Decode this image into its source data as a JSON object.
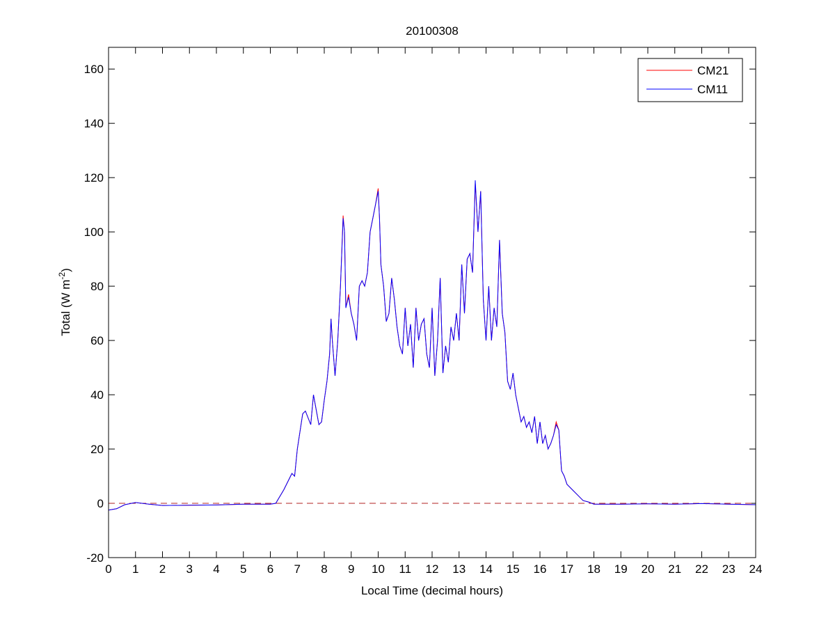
{
  "chart_data": {
    "type": "line",
    "title": "20100308",
    "xlabel": "Local Time (decimal hours)",
    "ylabel_main": "Total (W m",
    "ylabel_sup": "-2",
    "ylabel_end": ")",
    "xlim": [
      0,
      24
    ],
    "ylim": [
      -20,
      168
    ],
    "xticks": [
      0,
      1,
      2,
      3,
      4,
      5,
      6,
      7,
      8,
      9,
      10,
      11,
      12,
      13,
      14,
      15,
      16,
      17,
      18,
      19,
      20,
      21,
      22,
      23,
      24
    ],
    "yticks": [
      -20,
      0,
      20,
      40,
      60,
      80,
      100,
      120,
      140,
      160
    ],
    "grid": false,
    "legend_position": "top-right",
    "reference_line": {
      "y": 0,
      "style": "dashed",
      "color": "#b22222"
    },
    "x": [
      0,
      0.3,
      0.6,
      1,
      1.5,
      2,
      3,
      4,
      5,
      6,
      6.2,
      6.5,
      6.8,
      6.9,
      7,
      7.2,
      7.3,
      7.5,
      7.6,
      7.8,
      7.9,
      8.0,
      8.1,
      8.2,
      8.25,
      8.3,
      8.4,
      8.5,
      8.6,
      8.7,
      8.75,
      8.8,
      8.9,
      9.0,
      9.1,
      9.2,
      9.3,
      9.4,
      9.5,
      9.6,
      9.7,
      9.8,
      9.9,
      10,
      10.05,
      10.1,
      10.2,
      10.3,
      10.4,
      10.5,
      10.6,
      10.7,
      10.8,
      10.9,
      11.0,
      11.1,
      11.2,
      11.3,
      11.4,
      11.5,
      11.6,
      11.7,
      11.8,
      11.9,
      12.0,
      12.1,
      12.2,
      12.3,
      12.4,
      12.5,
      12.6,
      12.7,
      12.8,
      12.9,
      13.0,
      13.1,
      13.2,
      13.3,
      13.4,
      13.5,
      13.6,
      13.7,
      13.8,
      13.9,
      14.0,
      14.1,
      14.2,
      14.3,
      14.4,
      14.5,
      14.6,
      14.7,
      14.8,
      14.9,
      15.0,
      15.1,
      15.2,
      15.3,
      15.4,
      15.5,
      15.6,
      15.7,
      15.8,
      15.9,
      16.0,
      16.1,
      16.2,
      16.3,
      16.4,
      16.5,
      16.6,
      16.7,
      16.8,
      16.9,
      17.0,
      17.2,
      17.4,
      17.6,
      17.8,
      18.0,
      19,
      20,
      21,
      22,
      23,
      24
    ],
    "series": [
      {
        "name": "CM21",
        "color": "#ff0000",
        "values": [
          -2.5,
          -2,
          -0.5,
          0.3,
          -0.3,
          -0.8,
          -0.7,
          -0.6,
          -0.3,
          -0.3,
          0,
          5,
          11,
          10,
          20,
          33,
          34,
          29,
          40,
          29,
          30,
          38,
          45,
          55,
          68,
          60,
          47,
          60,
          80,
          106,
          100,
          72,
          77,
          70,
          66,
          60,
          80,
          82,
          80,
          85,
          100,
          105,
          110,
          116,
          105,
          88,
          80,
          67,
          70,
          83,
          75,
          65,
          58,
          55,
          72,
          58,
          66,
          50,
          72,
          60,
          66,
          68,
          55,
          50,
          72,
          47,
          60,
          83,
          48,
          58,
          52,
          65,
          60,
          70,
          60,
          88,
          70,
          90,
          92,
          85,
          118,
          100,
          115,
          75,
          60,
          80,
          60,
          72,
          65,
          97,
          70,
          63,
          45,
          42,
          48,
          40,
          35,
          30,
          32,
          28,
          30,
          26,
          32,
          22,
          30,
          22,
          25,
          20,
          22,
          25,
          30,
          27,
          12,
          10,
          7,
          5,
          3,
          1,
          0.5,
          -0.3,
          -0.3,
          -0.2,
          -0.3,
          -0.1,
          -0.3,
          -0.5
        ]
      },
      {
        "name": "CM11",
        "color": "#0000ff",
        "values": [
          -2.5,
          -2,
          -0.5,
          0.3,
          -0.3,
          -0.8,
          -0.7,
          -0.6,
          -0.3,
          -0.3,
          0,
          5,
          11,
          10,
          20,
          33,
          34,
          29,
          40,
          29,
          30,
          38,
          45,
          55,
          68,
          60,
          47,
          60,
          80,
          105,
          100,
          72,
          76,
          70,
          66,
          60,
          80,
          82,
          80,
          85,
          100,
          105,
          110,
          115,
          105,
          88,
          80,
          67,
          70,
          83,
          75,
          65,
          58,
          55,
          72,
          58,
          66,
          50,
          72,
          60,
          66,
          68,
          55,
          50,
          72,
          47,
          60,
          83,
          48,
          58,
          52,
          65,
          60,
          70,
          60,
          88,
          70,
          90,
          92,
          85,
          119,
          100,
          115,
          75,
          60,
          80,
          60,
          72,
          65,
          97,
          70,
          63,
          45,
          42,
          48,
          40,
          35,
          30,
          32,
          28,
          30,
          26,
          32,
          22,
          30,
          22,
          25,
          20,
          22,
          25,
          29,
          27,
          12,
          10,
          7,
          5,
          3,
          1,
          0.5,
          -0.3,
          -0.3,
          -0.2,
          -0.3,
          -0.1,
          -0.3,
          -0.5
        ]
      }
    ]
  }
}
